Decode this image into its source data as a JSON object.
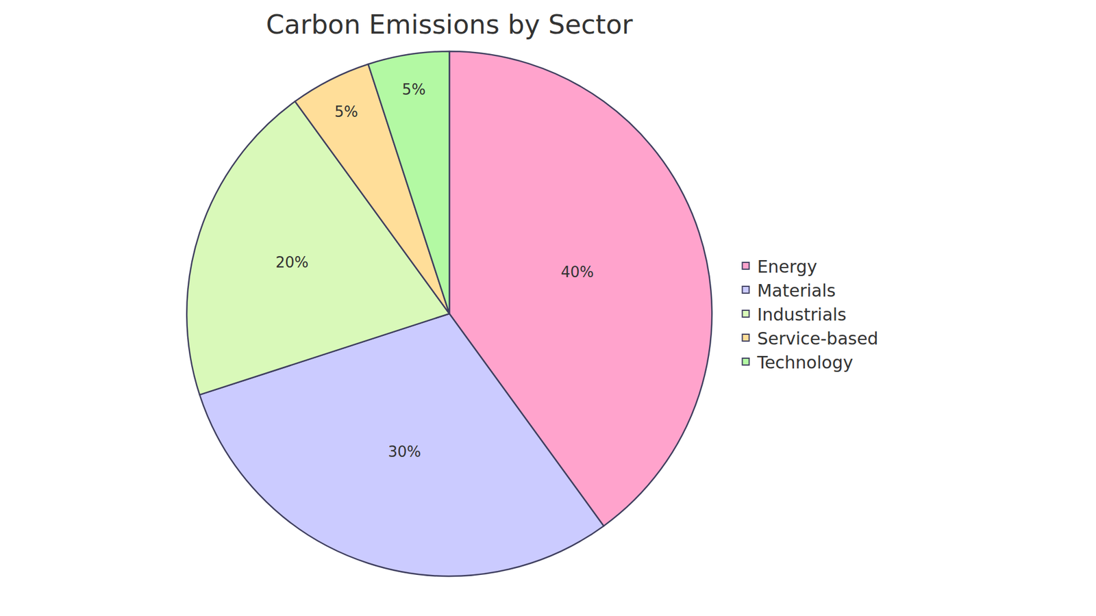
{
  "chart_data": {
    "type": "pie",
    "title": "Carbon Emissions by Sector",
    "categories": [
      "Energy",
      "Materials",
      "Industrials",
      "Service-based",
      "Technology"
    ],
    "values": [
      40,
      30,
      20,
      5,
      5
    ],
    "value_labels": [
      "40%",
      "30%",
      "20%",
      "5%",
      "5%"
    ],
    "colors": [
      "#ffa3cc",
      "#cbcbff",
      "#d9f9b9",
      "#ffde99",
      "#b3f9a3"
    ],
    "data_labels": true,
    "legend": "right"
  }
}
